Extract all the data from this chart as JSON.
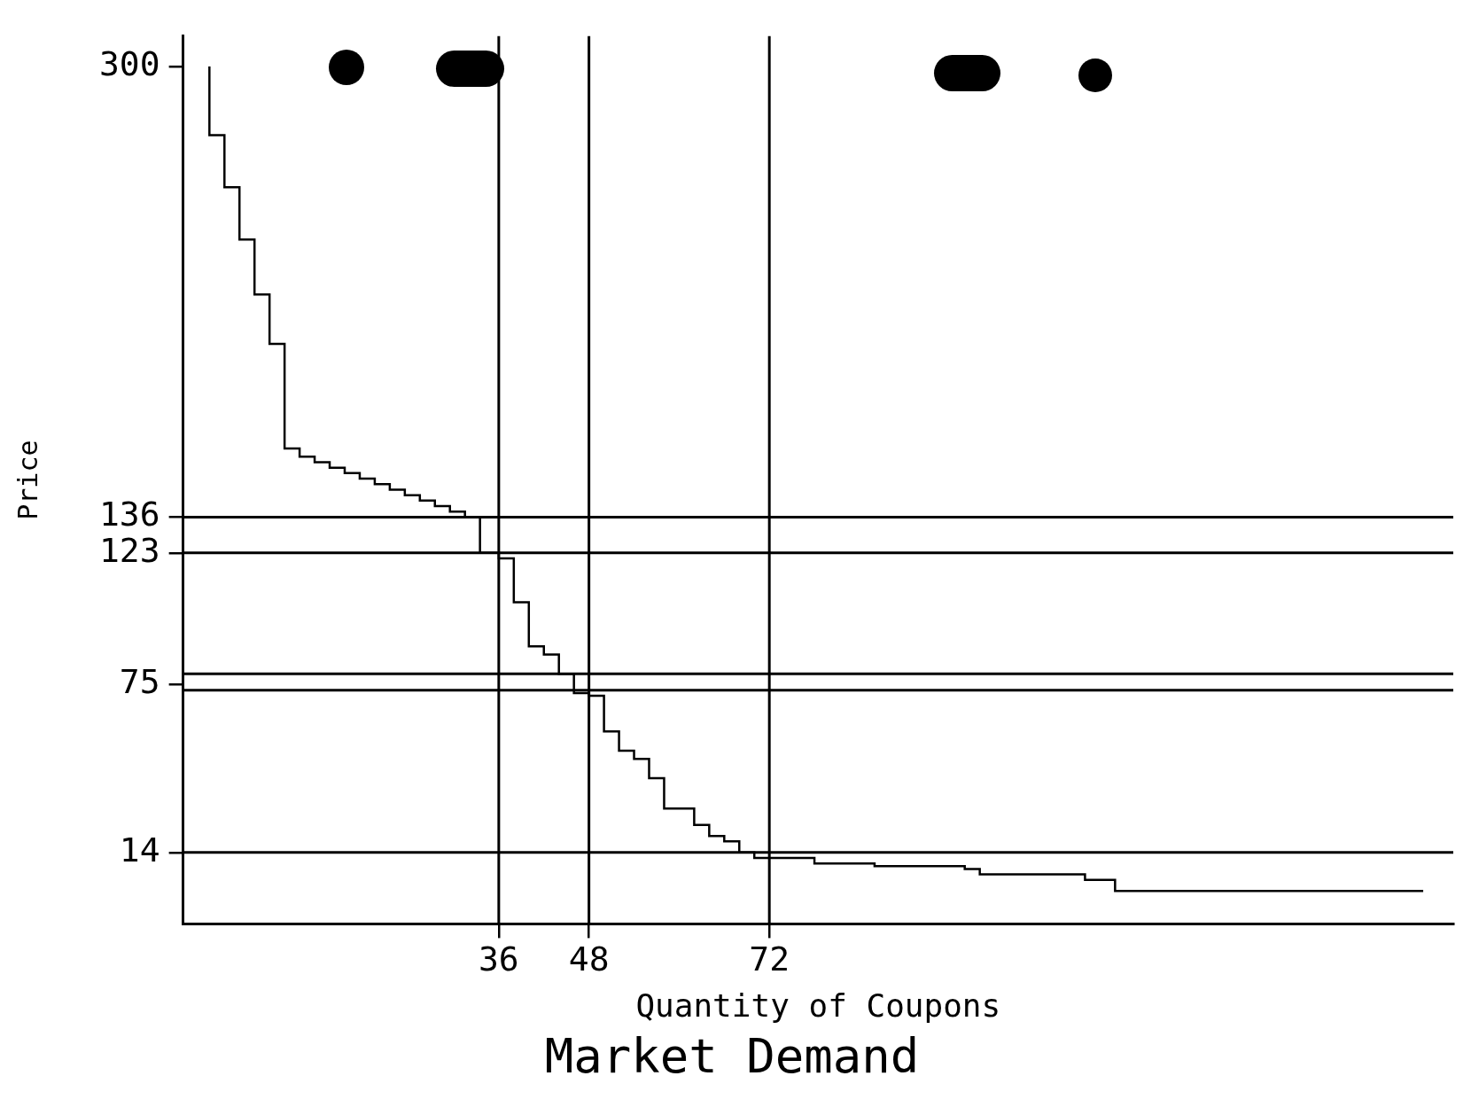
{
  "chart_data": {
    "type": "step",
    "title": "Market Demand",
    "xlabel": "Quantity of Coupons",
    "ylabel": "Price",
    "x": [
      -2.5,
      -0.5,
      1.5,
      3.5,
      5.5,
      7.5,
      9.5,
      11.5,
      13.5,
      15.5,
      17.5,
      19.5,
      21.5,
      23.5,
      25.5,
      27.5,
      29.5,
      31.5,
      33.5,
      36,
      38,
      40,
      42,
      44,
      46,
      48,
      50,
      52,
      54,
      56,
      58,
      62,
      64,
      66,
      68,
      70,
      78,
      86,
      98,
      100,
      114,
      118,
      120,
      159
    ],
    "values": [
      300,
      275,
      256,
      237,
      217,
      199,
      161,
      158,
      156,
      154,
      152,
      150,
      148,
      146,
      144,
      142,
      140,
      138,
      136,
      123,
      121,
      105,
      89,
      86,
      79,
      72,
      71,
      58,
      51,
      48,
      41,
      30,
      24,
      20,
      18,
      14,
      12,
      10,
      9,
      8,
      6,
      4,
      0,
      0
    ],
    "color": "#000000",
    "xlim": [
      -6,
      163
    ],
    "xticks": [
      36,
      48,
      72
    ],
    "ylim": [
      -12,
      311
    ],
    "yticks": [
      14,
      75,
      123,
      136,
      300
    ],
    "ref_lines": [
      {
        "axis": "y",
        "value": 136
      },
      {
        "axis": "y",
        "value": 123
      },
      {
        "axis": "y",
        "value": 79
      },
      {
        "axis": "y",
        "value": 73
      },
      {
        "axis": "y",
        "value": 14
      },
      {
        "axis": "x",
        "value": 36
      },
      {
        "axis": "x",
        "value": 48
      },
      {
        "axis": "x",
        "value": 72
      }
    ],
    "legend": false
  }
}
